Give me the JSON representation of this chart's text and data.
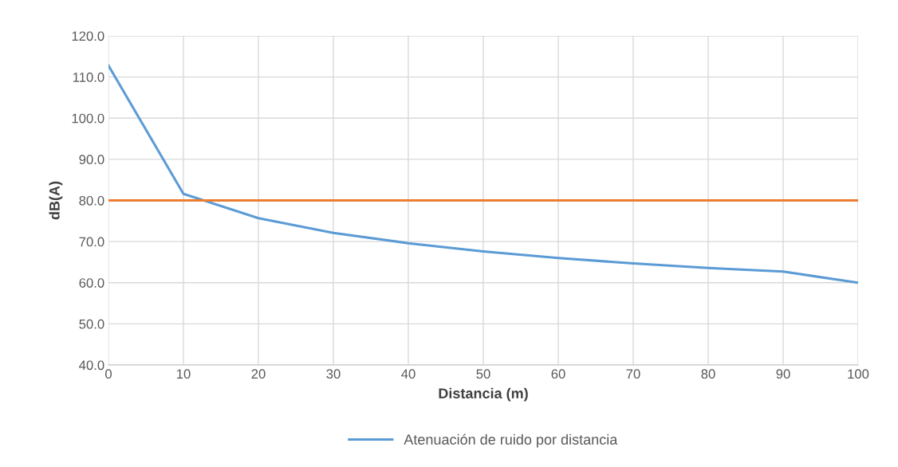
{
  "chart_data": {
    "type": "line",
    "xlabel": "Distancia (m)",
    "ylabel": "dB(A)",
    "x": [
      0,
      10,
      20,
      30,
      40,
      50,
      60,
      70,
      80,
      90,
      100
    ],
    "series": [
      {
        "name": "Atenuación de ruido por distancia",
        "color": "#5b9bd5",
        "values": [
          112.8,
          81.6,
          75.7,
          72.1,
          69.6,
          67.6,
          66.0,
          64.7,
          63.6,
          62.7,
          60.0
        ]
      },
      {
        "color": "#ed7d31",
        "values": [
          80,
          80,
          80,
          80,
          80,
          80,
          80,
          80,
          80,
          80,
          80
        ]
      }
    ],
    "xlim": [
      0,
      100
    ],
    "xticks": [
      0,
      10,
      20,
      30,
      40,
      50,
      60,
      70,
      80,
      90,
      100
    ],
    "ylim": [
      40,
      120
    ],
    "yticks": [
      {
        "value": 40,
        "label": "40.0"
      },
      {
        "value": 50,
        "label": "50.0"
      },
      {
        "value": 60,
        "label": "60.0"
      },
      {
        "value": 70,
        "label": "70.0"
      },
      {
        "value": 80,
        "label": "80.0"
      },
      {
        "value": 90,
        "label": "90.0"
      },
      {
        "value": 100,
        "label": "100.0"
      },
      {
        "value": 110,
        "label": "110.0"
      },
      {
        "value": 120,
        "label": "120.0"
      }
    ],
    "grid": true,
    "legend": "bottom"
  }
}
